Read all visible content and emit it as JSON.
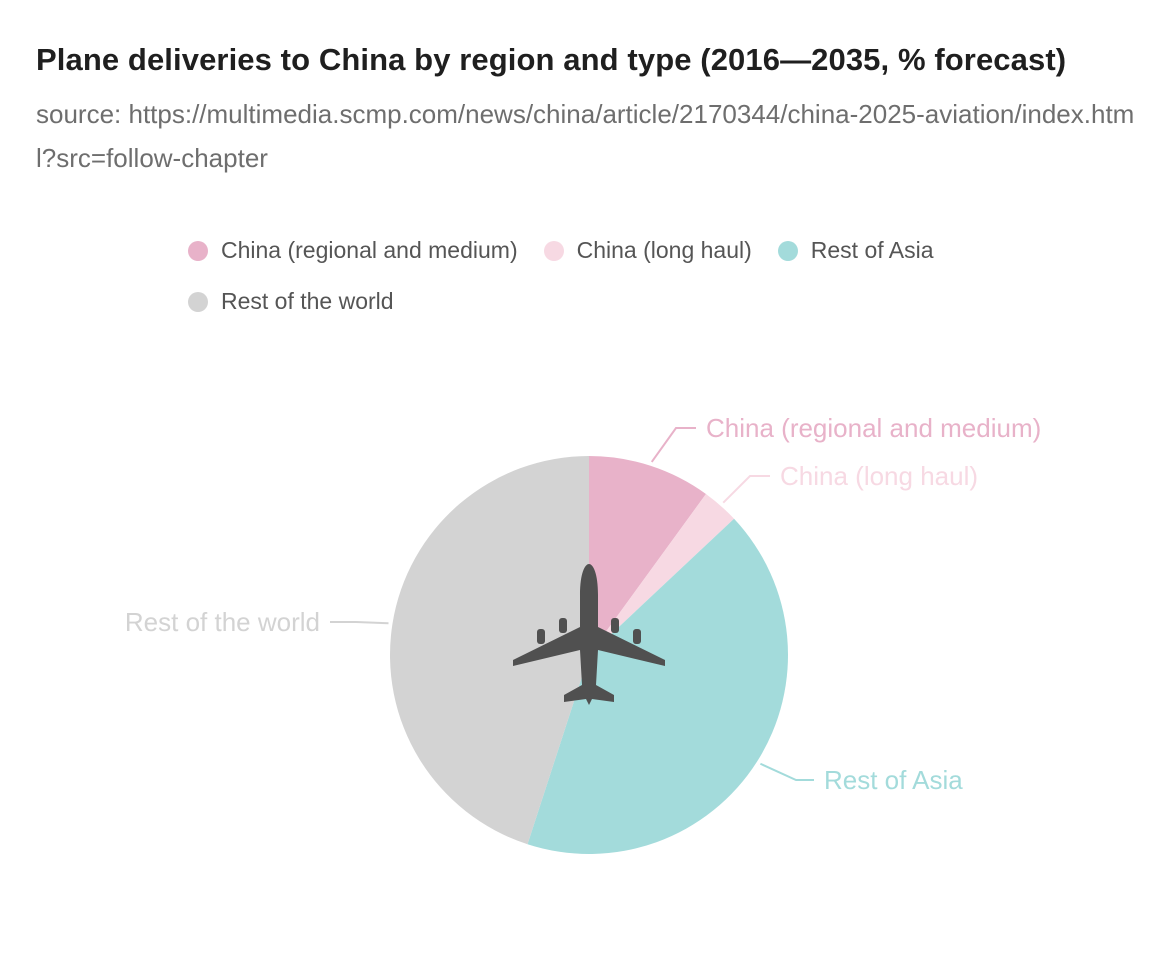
{
  "header": {
    "title": "Plane deliveries to China by region and type (2016—2035, % forecast)",
    "subtitle": "source: https://multimedia.scmp.com/news/china/article/2170344/china-2025-aviation/index.html?src=follow-chapter"
  },
  "center_icon": "airplane-icon",
  "chart_data": {
    "type": "pie",
    "title": "Plane deliveries to China by region and type (2016—2035, % forecast)",
    "subtitle": "source: https://multimedia.scmp.com/news/china/article/2170344/china-2025-aviation/index.html?src=follow-chapter",
    "legend_position": "top",
    "start_angle": "12 o'clock, clockwise",
    "categories": [
      "China (regional and medium)",
      "China (long haul)",
      "Rest of Asia",
      "Rest of the world"
    ],
    "values": [
      10,
      3,
      42,
      45
    ],
    "unit": "%",
    "colors": [
      "#e8b2c9",
      "#f7d9e3",
      "#a3dbdb",
      "#d3d3d3"
    ]
  }
}
